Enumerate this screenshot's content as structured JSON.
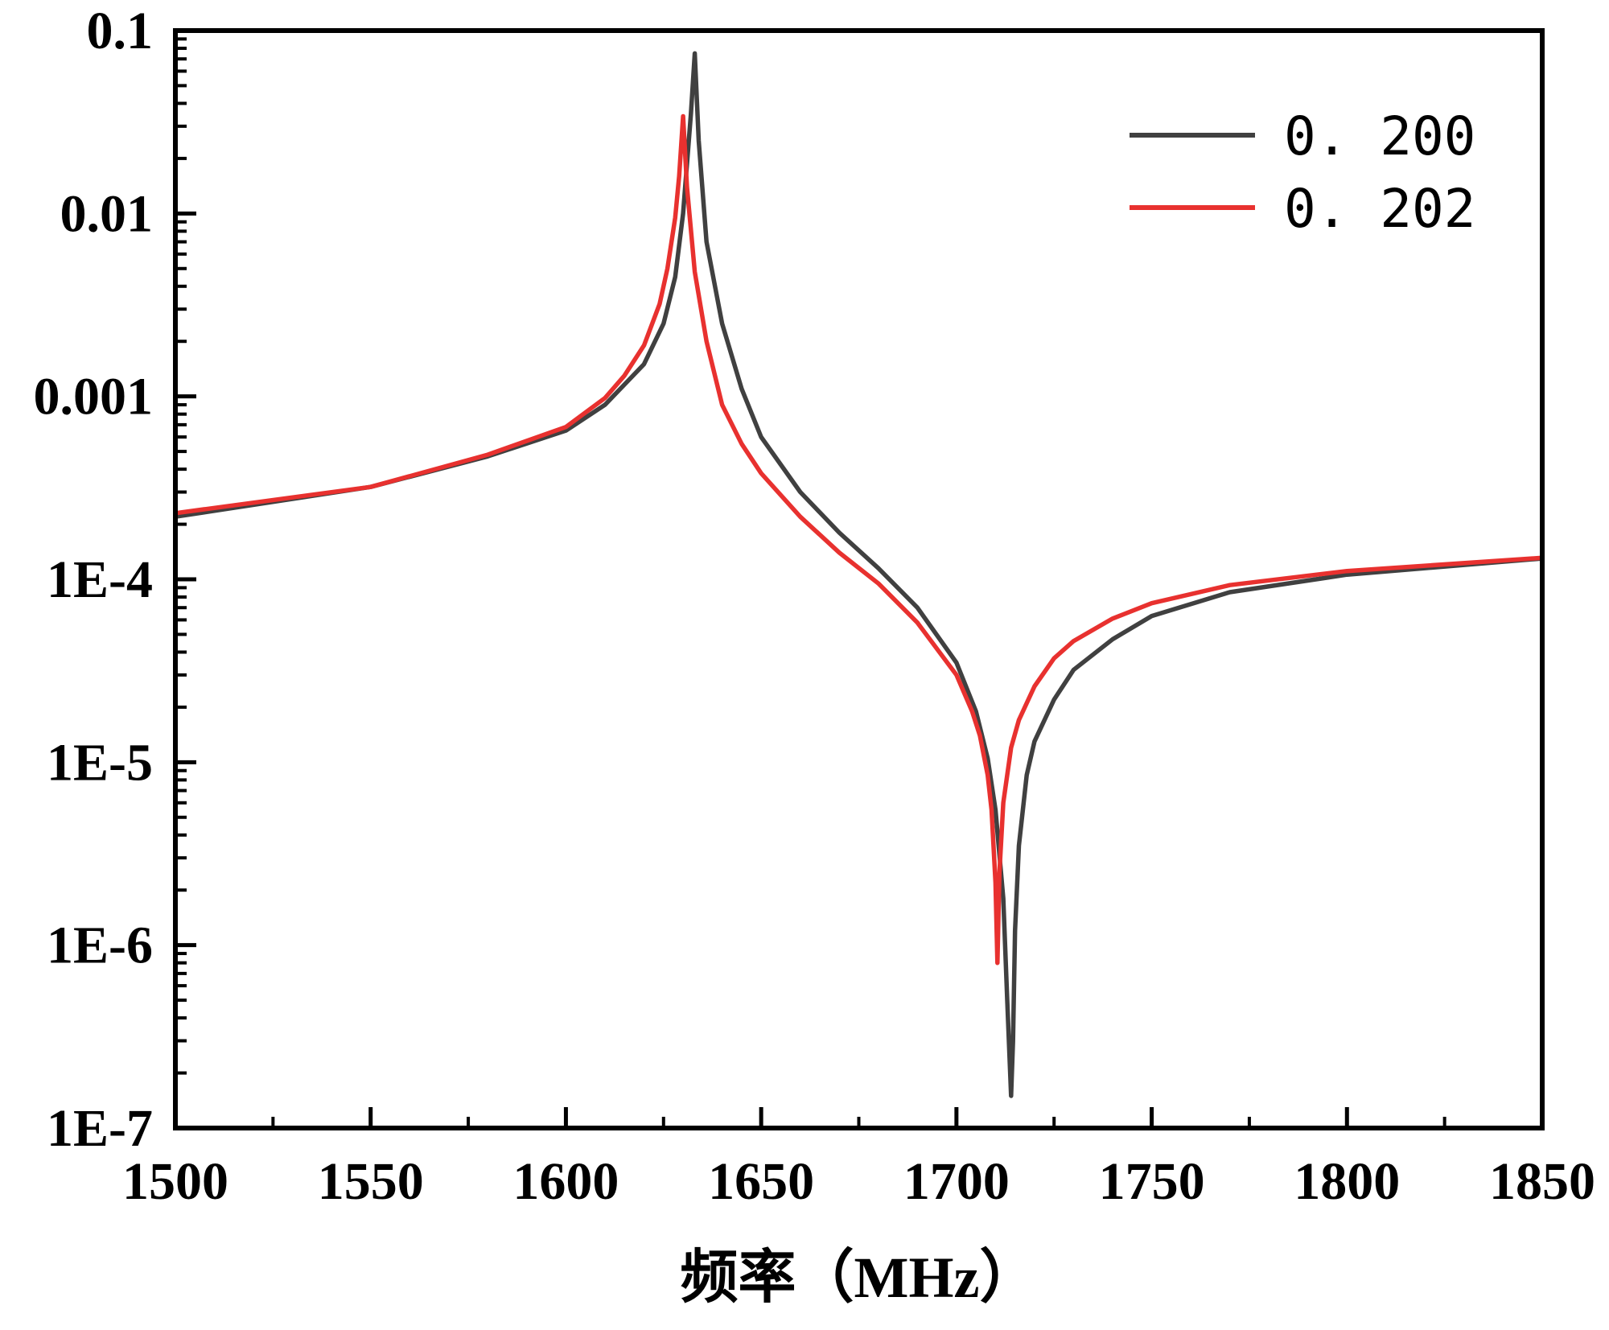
{
  "chart_data": {
    "type": "line",
    "title": "",
    "xlabel": "频率（MHz）",
    "ylabel": "",
    "xlim": [
      1500,
      1850
    ],
    "ylim": [
      1e-07,
      0.1
    ],
    "yscale": "log",
    "grid": false,
    "legend_position": "top-right",
    "x_ticks": [
      1500,
      1550,
      1600,
      1650,
      1700,
      1750,
      1800,
      1850
    ],
    "x_tick_labels": [
      "1500",
      "1550",
      "1600",
      "1650",
      "1700",
      "1750",
      "1800",
      "1850"
    ],
    "y_ticks": [
      1e-07,
      1e-06,
      1e-05,
      0.0001,
      0.001,
      0.01,
      0.1
    ],
    "y_tick_labels": [
      "1E-7",
      "1E-6",
      "1E-5",
      "1E-4",
      "0.001",
      "0.01",
      "0.1"
    ],
    "series": [
      {
        "name": "0. 200",
        "color": "#404040",
        "x": [
          1500,
          1550,
          1580,
          1600,
          1610,
          1620,
          1625,
          1628,
          1630,
          1632,
          1633,
          1634,
          1636,
          1640,
          1645,
          1650,
          1660,
          1670,
          1680,
          1690,
          1700,
          1705,
          1708,
          1710,
          1712,
          1713,
          1714,
          1714.5,
          1715,
          1716,
          1718,
          1720,
          1725,
          1730,
          1740,
          1750,
          1770,
          1800,
          1850
        ],
        "y": [
          0.00022,
          0.00032,
          0.00047,
          0.00065,
          0.0009,
          0.0015,
          0.0025,
          0.0045,
          0.01,
          0.035,
          0.075,
          0.025,
          0.007,
          0.0025,
          0.0011,
          0.0006,
          0.0003,
          0.00018,
          0.000115,
          7e-05,
          3.5e-05,
          1.9e-05,
          1.05e-05,
          5.5e-06,
          1.8e-06,
          5e-07,
          1.5e-07,
          3e-07,
          1.2e-06,
          3.5e-06,
          8.5e-06,
          1.3e-05,
          2.2e-05,
          3.2e-05,
          4.7e-05,
          6.3e-05,
          8.5e-05,
          0.000106,
          0.00013
        ]
      },
      {
        "name": "0. 202",
        "color": "#e8312f",
        "x": [
          1500,
          1550,
          1580,
          1600,
          1610,
          1615,
          1620,
          1624,
          1626,
          1628,
          1629,
          1630,
          1631,
          1633,
          1636,
          1640,
          1645,
          1650,
          1660,
          1670,
          1680,
          1690,
          1700,
          1704,
          1706,
          1708,
          1709,
          1710,
          1710.5,
          1711,
          1712,
          1714,
          1716,
          1720,
          1725,
          1730,
          1740,
          1750,
          1770,
          1800,
          1850
        ],
        "y": [
          0.00023,
          0.00032,
          0.00048,
          0.00068,
          0.00098,
          0.0013,
          0.0019,
          0.0032,
          0.005,
          0.0095,
          0.016,
          0.034,
          0.014,
          0.0048,
          0.002,
          0.0009,
          0.00055,
          0.00038,
          0.00022,
          0.00014,
          9.5e-05,
          5.8e-05,
          3e-05,
          1.9e-05,
          1.4e-05,
          8.5e-06,
          5.5e-06,
          2.2e-06,
          8e-07,
          2.5e-06,
          6e-06,
          1.2e-05,
          1.7e-05,
          2.6e-05,
          3.7e-05,
          4.6e-05,
          6.1e-05,
          7.4e-05,
          9.3e-05,
          0.000111,
          0.000131
        ]
      }
    ]
  }
}
